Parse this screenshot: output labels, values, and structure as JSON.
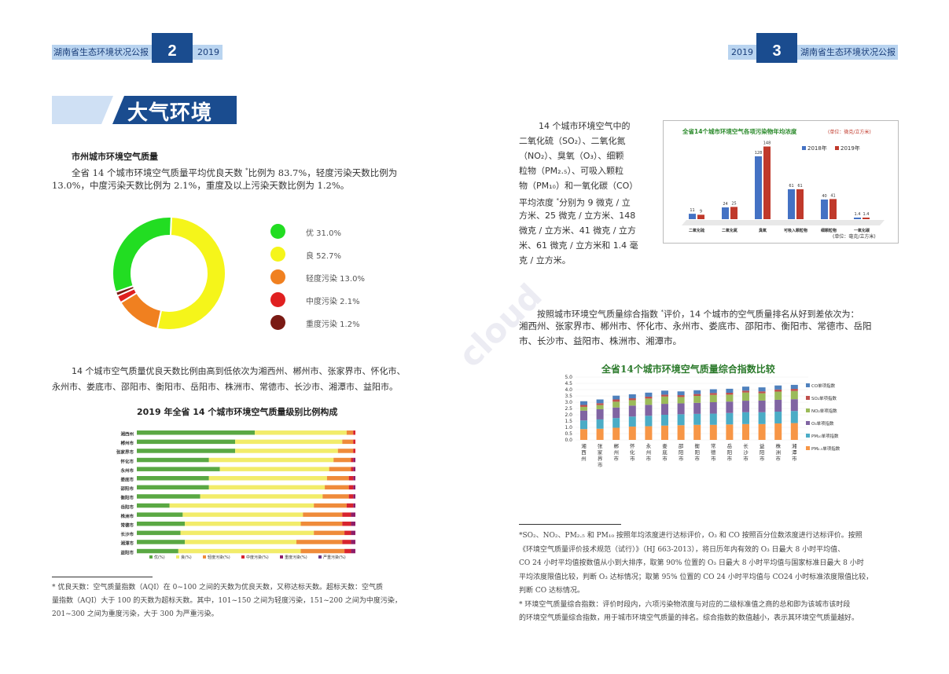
{
  "header_left": {
    "title": "湖南省生态环境状况公报",
    "page": "2",
    "year": "2019"
  },
  "header_right": {
    "title": "湖南省生态环境状况公报",
    "page": "3",
    "year": "2019"
  },
  "section_title": "大气环境",
  "subheading": "市州城市环境空气质量",
  "para1": [
    "全省 14 个城市环境空气质量平均优良天数 ",
    "比例为 83.7%，轻度污染天数比例为",
    "13.0%，中度污染天数比例为 2.1%，重度及以上污染天数比例为 1.2%。"
  ],
  "donut": {
    "legend": [
      "优 31.0%",
      "良 52.7%",
      "轻度污染 13.0%",
      "中度污染 2.1%",
      "重度污染 1.2%"
    ],
    "values": [
      31.0,
      52.7,
      13.0,
      2.1,
      1.2
    ],
    "colors": [
      "#22dd22",
      "#f5f51a",
      "#f08020",
      "#e02020",
      "#7a1a14"
    ]
  },
  "para2": [
    "14 个城市空气质量优良天数比例由高到低依次为湘西州、郴州市、张家界市、怀化市、",
    "永州市、娄底市、邵阳市、衡阳市、岳阳市、株洲市、常德市、长沙市、湘潭市、益阳市。"
  ],
  "chart_data": [
    {
      "type": "bar",
      "title": "2019 年全省 14 个城市环境空气质量级别比例构成",
      "categories": [
        "湘西州",
        "郴州市",
        "张家界市",
        "怀化市",
        "永州市",
        "娄底市",
        "邵阳市",
        "衡阳市",
        "岳阳市",
        "株洲市",
        "常德市",
        "长沙市",
        "湘潭市",
        "益阳市"
      ],
      "series": [
        {
          "name": "优(%)",
          "color": "#5aa843",
          "values": [
            54,
            45,
            45,
            33,
            38,
            33,
            33,
            29,
            15,
            21,
            22,
            20,
            22,
            19
          ]
        },
        {
          "name": "良(%)",
          "color": "#f2ec6a",
          "values": [
            42,
            49,
            47,
            57,
            50,
            54,
            53,
            56,
            66,
            55,
            53,
            61,
            51,
            56
          ]
        },
        {
          "name": "轻度污染(%)",
          "color": "#ef8b3a",
          "values": [
            3,
            5,
            7,
            8,
            10,
            10,
            11,
            12,
            15,
            18,
            19,
            14,
            21,
            20
          ]
        },
        {
          "name": "中度污染(%)",
          "color": "#d8242e",
          "values": [
            1,
            1,
            1,
            1,
            1,
            2,
            2,
            2,
            3,
            4,
            4,
            3,
            4,
            3
          ]
        },
        {
          "name": "重度污染(%)",
          "color": "#8e1e6a",
          "values": [
            0,
            0,
            0,
            1,
            1,
            1,
            1,
            1,
            1,
            2,
            2,
            2,
            2,
            2
          ]
        },
        {
          "name": "严重污染(%)",
          "color": "#6a3a8a",
          "values": [
            0,
            0,
            0,
            0,
            0,
            0,
            0,
            0,
            0,
            0,
            0,
            0,
            0,
            0
          ]
        }
      ]
    },
    {
      "type": "bar",
      "title": "全省14个城市环境空气各项污染物年均浓度",
      "unit_top": "(单位：微克/立方米)",
      "unit_bottom": "(单位：毫克/立方米)",
      "categories": [
        "二氧化硫",
        "二氧化氮",
        "臭氧",
        "可吸入颗粒物",
        "细颗粒物",
        "一氧化碳"
      ],
      "series": [
        {
          "name": "2018年",
          "color": "#4472c4",
          "values": [
            11,
            24,
            128,
            61,
            40,
            1.4
          ]
        },
        {
          "name": "2019年",
          "color": "#c0392b",
          "values": [
            9,
            25,
            148,
            61,
            41,
            1.4
          ]
        }
      ],
      "ylim": [
        0,
        160
      ]
    },
    {
      "type": "bar",
      "title": "全省14个城市环境空气质量综合指数比较",
      "categories": [
        "湘西州",
        "张家界市",
        "郴州市",
        "怀化市",
        "永州市",
        "娄底市",
        "邵阳市",
        "衡阳市",
        "常德市",
        "岳阳市",
        "长沙市",
        "益阳市",
        "株洲市",
        "湘潭市"
      ],
      "yticks": [
        "5.0",
        "4.5",
        "4.0",
        "3.5",
        "3.0",
        "2.5",
        "2.0",
        "1.5",
        "1.0",
        "0.5",
        "0.0"
      ],
      "ylim": [
        0,
        5
      ],
      "series": [
        {
          "name": "PM₂.₅单项指数",
          "color": "#f79646",
          "values": [
            0.86,
            0.89,
            0.97,
            1.06,
            1.09,
            1.14,
            1.17,
            1.2,
            1.2,
            1.23,
            1.26,
            1.26,
            1.31,
            1.34
          ]
        },
        {
          "name": "PM₁₀单项指数",
          "color": "#4bacc6",
          "values": [
            0.69,
            0.74,
            0.77,
            0.8,
            0.83,
            0.86,
            0.87,
            0.87,
            0.89,
            0.91,
            0.94,
            0.94,
            0.94,
            0.96
          ]
        },
        {
          "name": "O₃单项指数",
          "color": "#8064a2",
          "values": [
            0.78,
            0.81,
            0.84,
            0.87,
            0.87,
            0.87,
            0.87,
            0.88,
            0.91,
            0.91,
            0.92,
            0.93,
            0.94,
            0.94
          ]
        },
        {
          "name": "NO₂单项指数",
          "color": "#9bbb59",
          "values": [
            0.3,
            0.33,
            0.46,
            0.43,
            0.5,
            0.58,
            0.5,
            0.55,
            0.58,
            0.55,
            0.65,
            0.58,
            0.65,
            0.65
          ]
        },
        {
          "name": "SO₂单项指数",
          "color": "#c0504d",
          "values": [
            0.15,
            0.15,
            0.18,
            0.15,
            0.15,
            0.15,
            0.15,
            0.15,
            0.15,
            0.15,
            0.15,
            0.15,
            0.17,
            0.17
          ]
        },
        {
          "name": "CO单项指数",
          "color": "#4f81bd",
          "values": [
            0.3,
            0.3,
            0.3,
            0.32,
            0.32,
            0.32,
            0.3,
            0.3,
            0.3,
            0.32,
            0.32,
            0.32,
            0.32,
            0.32
          ]
        }
      ]
    }
  ],
  "fn_left": [
    "* 优良天数：空气质量指数（AQI）在 0~100 之间的天数为优良天数，又称达标天数。超标天数：空气质",
    "量指数（AQI）大于 100 的天数为超标天数。其中，101~150 之间为轻度污染，151~200 之间为中度污染，",
    "201~300 之间为重度污染，大于 300 为严重污染。"
  ],
  "right_para1": [
    "14 个城市环境空气中的",
    "二氧化硫（SO₂）、二氧化氮",
    "（NO₂）、臭氧（O₃）、细颗",
    "粒物（PM₂.₅）、可吸入颗粒",
    "物（PM₁₀）和一氧化碳（CO）",
    "平均浓度 ",
    "方米、25 微克 / 立方米、148",
    "微克 / 立方米、41 微克 / 立方",
    "米、61 微克 / 立方米和 1.4 毫",
    "克 / 立方米。"
  ],
  "right_para1_tail": "分别为 9 微克 / 立",
  "right_para2": [
    "按照城市环境空气质量综合指数 ",
    "评价，14 个城市的空气质量排名从好到差依次为：",
    "湘西州、张家界市、郴州市、怀化市、永州市、娄底市、邵阳市、衡阳市、常德市、岳阳",
    "市、长沙市、益阳市、株洲市、湘潭市。"
  ],
  "fn_right": [
    "*SO₂、NO₂、PM₂.₅ 和 PM₁₀ 按照年均浓度进行达标评价，O₃ 和 CO 按照百分位数浓度进行达标评价。按照",
    "《环境空气质量评价技术规范（试行）》（HJ 663-2013），将日历年内有效的 O₃ 日最大 8 小时平均值、",
    "CO 24 小时平均值按数值从小到大排序，取第 90% 位置的 O₃ 日最大 8 小时平均值与国家标准日最大 8 小时",
    "平均浓度限值比较，判断 O₃ 达标情况；取第 95% 位置的 CO 24 小时平均值与 CO24 小时标准浓度限值比较，",
    "判断 CO 达标情况。",
    "* 环境空气质量综合指数：评价时段内，六项污染物浓度与对应的二级标准值之商的总和即为该城市该时段",
    "的环境空气质量综合指数，用于城市环境空气质量的排名。综合指数的数值越小，表示其环境空气质量越好。"
  ],
  "watermark": "cloud"
}
